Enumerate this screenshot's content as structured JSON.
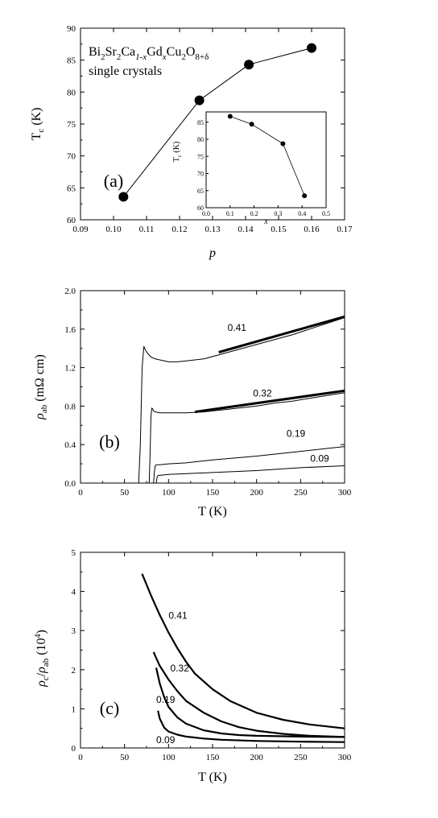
{
  "chart_data": [
    {
      "type": "line",
      "panel_label": "(a)",
      "annotation_lines": [
        "single crystals"
      ],
      "formula": [
        {
          "t": "Bi",
          "s": ""
        },
        {
          "t": "2",
          "s": "sub"
        },
        {
          "t": "Sr",
          "s": ""
        },
        {
          "t": "2",
          "s": "sub"
        },
        {
          "t": "Ca",
          "s": ""
        },
        {
          "t": "1-x",
          "s": "sub-it"
        },
        {
          "t": "Gd",
          "s": ""
        },
        {
          "t": "x",
          "s": "sub-it"
        },
        {
          "t": "Cu",
          "s": ""
        },
        {
          "t": "2",
          "s": "sub"
        },
        {
          "t": "O",
          "s": ""
        },
        {
          "t": "8+δ",
          "s": "sub"
        }
      ],
      "xlabel": "p",
      "ylabel": {
        "main": "T",
        "sub": "c",
        "unit": " (K)"
      },
      "xlim": [
        0.09,
        0.17
      ],
      "ylim": [
        60,
        90
      ],
      "xticks": [
        "0.09",
        "0.10",
        "0.11",
        "0.12",
        "0.13",
        "0.14",
        "0.15",
        "0.16",
        "0.17"
      ],
      "yticks": [
        "60",
        "65",
        "70",
        "75",
        "80",
        "85",
        "90"
      ],
      "series": [
        {
          "x": [
            0.103,
            0.126,
            0.141,
            0.16
          ],
          "y": [
            63.6,
            78.7,
            84.3,
            86.9
          ]
        }
      ],
      "inset": {
        "type": "line",
        "xlabel": "x",
        "ylabel": {
          "main": "T",
          "sub": "c",
          "unit": " (K)"
        },
        "xlim": [
          0.0,
          0.5
        ],
        "ylim": [
          60,
          88
        ],
        "xticks": [
          "0.0",
          "0.1",
          "0.2",
          "0.3",
          "0.4",
          "0.5"
        ],
        "yticks": [
          "60",
          "65",
          "70",
          "75",
          "80",
          "85"
        ],
        "series": [
          {
            "x": [
              0.1,
              0.19,
              0.32,
              0.41
            ],
            "y": [
              86.7,
              84.4,
              78.7,
              63.5
            ]
          }
        ]
      }
    },
    {
      "type": "line",
      "panel_label": "(b)",
      "xlabel": "T (K)",
      "ylabel": {
        "rho": "ρ",
        "sub": "ab",
        "unit": " (mΩ cm)"
      },
      "xlim": [
        0,
        300
      ],
      "ylim": [
        0.0,
        2.0
      ],
      "xticks": [
        "0",
        "50",
        "100",
        "150",
        "200",
        "250",
        "300"
      ],
      "yticks": [
        "0.0",
        "0.4",
        "0.8",
        "1.2",
        "1.6",
        "2.0"
      ],
      "series": [
        {
          "name": "0.41",
          "x": [
            66,
            68,
            70,
            72,
            74,
            76,
            78,
            80,
            85,
            90,
            100,
            110,
            120,
            140,
            160,
            180,
            200,
            220,
            240,
            260,
            280,
            300
          ],
          "y": [
            0.0,
            0.4,
            1.2,
            1.42,
            1.38,
            1.35,
            1.33,
            1.31,
            1.29,
            1.28,
            1.26,
            1.26,
            1.27,
            1.29,
            1.34,
            1.39,
            1.44,
            1.49,
            1.54,
            1.6,
            1.66,
            1.72
          ]
        },
        {
          "name": "0.32",
          "x": [
            78,
            79,
            80,
            81,
            82,
            83,
            85,
            90,
            95,
            100,
            110,
            120,
            140,
            160,
            180,
            200,
            220,
            240,
            260,
            280,
            300
          ],
          "y": [
            0.0,
            0.3,
            0.7,
            0.78,
            0.77,
            0.75,
            0.74,
            0.73,
            0.73,
            0.73,
            0.73,
            0.73,
            0.74,
            0.76,
            0.78,
            0.8,
            0.83,
            0.85,
            0.88,
            0.91,
            0.94
          ]
        },
        {
          "name": "0.19",
          "x": [
            83,
            84,
            85,
            86,
            88,
            90,
            100,
            120,
            150,
            200,
            250,
            300
          ],
          "y": [
            0.0,
            0.12,
            0.18,
            0.19,
            0.19,
            0.19,
            0.2,
            0.21,
            0.24,
            0.28,
            0.33,
            0.38
          ]
        },
        {
          "name": "0.09",
          "x": [
            86,
            87,
            88,
            89,
            90,
            100,
            150,
            200,
            250,
            300
          ],
          "y": [
            0.0,
            0.06,
            0.08,
            0.08,
            0.08,
            0.09,
            0.11,
            0.13,
            0.16,
            0.18
          ]
        }
      ],
      "fit_lines": [
        {
          "x": [
            157,
            300
          ],
          "y": [
            1.36,
            1.73
          ]
        },
        {
          "x": [
            130,
            300
          ],
          "y": [
            0.74,
            0.96
          ]
        }
      ],
      "series_labels": [
        {
          "text": "0.41",
          "x": 167,
          "y": 1.58
        },
        {
          "text": "0.32",
          "x": 196,
          "y": 0.9
        },
        {
          "text": "0.19",
          "x": 234,
          "y": 0.48
        },
        {
          "text": "0.09",
          "x": 261,
          "y": 0.22
        }
      ]
    },
    {
      "type": "line",
      "panel_label": "(c)",
      "xlabel": "T (K)",
      "ylabel": {
        "rho1": "ρ",
        "sub1": "c",
        "slash": "/",
        "rho2": "ρ",
        "sub2": "ab",
        "unit1": " (10",
        "sup": "4",
        "unit2": ")"
      },
      "xlim": [
        0,
        300
      ],
      "ylim": [
        0,
        5
      ],
      "xticks": [
        "0",
        "50",
        "100",
        "150",
        "200",
        "250",
        "300"
      ],
      "yticks": [
        "0",
        "1",
        "2",
        "3",
        "4",
        "5"
      ],
      "series": [
        {
          "name": "0.41",
          "x": [
            70,
            80,
            90,
            100,
            110,
            120,
            130,
            150,
            170,
            200,
            230,
            260,
            300
          ],
          "y": [
            4.45,
            3.9,
            3.4,
            2.95,
            2.55,
            2.2,
            1.9,
            1.5,
            1.2,
            0.9,
            0.72,
            0.6,
            0.5
          ]
        },
        {
          "name": "0.32",
          "x": [
            83,
            90,
            100,
            110,
            120,
            140,
            160,
            180,
            200,
            230,
            260,
            300
          ],
          "y": [
            2.45,
            2.1,
            1.75,
            1.45,
            1.2,
            0.9,
            0.68,
            0.53,
            0.44,
            0.36,
            0.31,
            0.28
          ]
        },
        {
          "name": "0.19",
          "x": [
            86,
            90,
            95,
            100,
            110,
            120,
            140,
            160,
            180,
            200,
            250,
            300
          ],
          "y": [
            2.05,
            1.65,
            1.3,
            1.05,
            0.78,
            0.62,
            0.45,
            0.37,
            0.33,
            0.31,
            0.29,
            0.28
          ]
        },
        {
          "name": "0.09",
          "x": [
            88,
            90,
            95,
            100,
            110,
            120,
            140,
            160,
            200,
            250,
            300
          ],
          "y": [
            0.95,
            0.75,
            0.52,
            0.42,
            0.34,
            0.29,
            0.24,
            0.21,
            0.18,
            0.16,
            0.15
          ]
        }
      ],
      "series_labels": [
        {
          "text": "0.41",
          "x": 100,
          "y": 3.3
        },
        {
          "text": "0.32",
          "x": 102,
          "y": 1.95
        },
        {
          "text": "0.19",
          "x": 86,
          "y": 1.15
        },
        {
          "text": "0.09",
          "x": 86,
          "y": 0.12
        }
      ]
    }
  ]
}
